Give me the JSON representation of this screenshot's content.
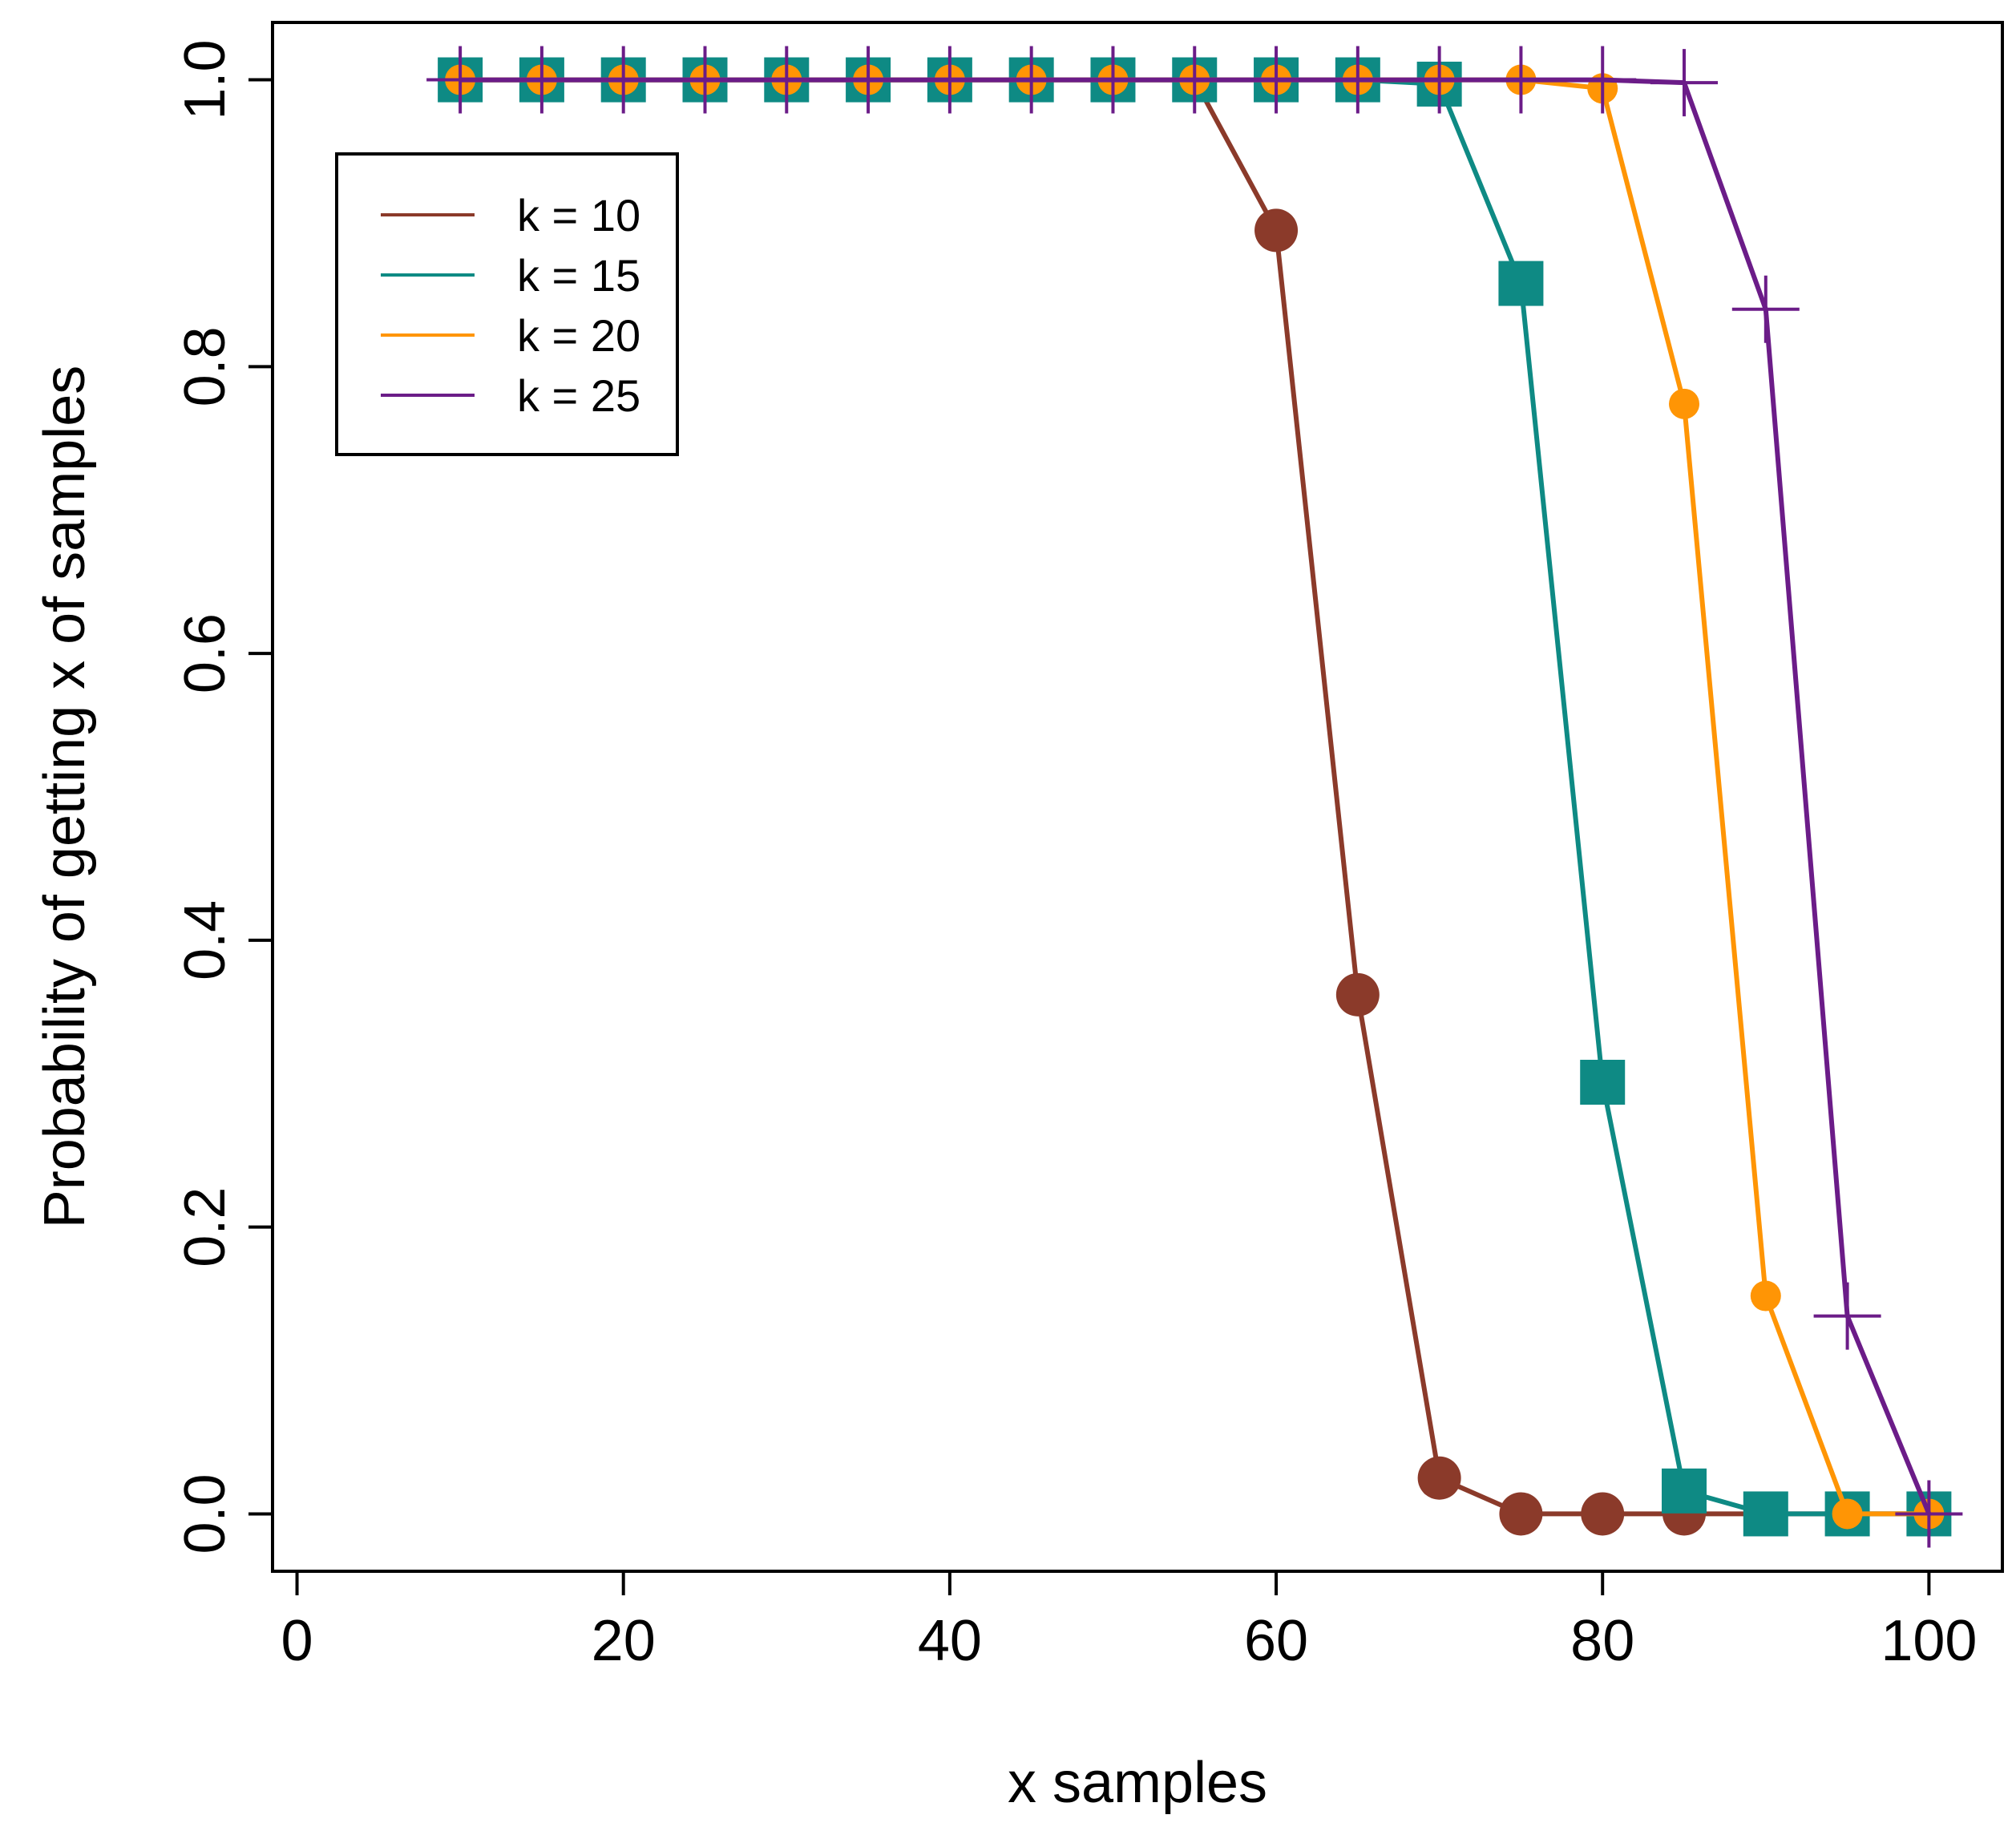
{
  "chart_data": {
    "type": "line",
    "title": "",
    "xlabel": "x samples",
    "ylabel": "Probability of getting x of samples",
    "xlim": [
      -1.5,
      104.5
    ],
    "ylim": [
      -0.04,
      1.04
    ],
    "xticks": [
      0,
      20,
      40,
      60,
      80,
      100
    ],
    "xtick_labels": [
      "0",
      "20",
      "40",
      "60",
      "80",
      "100"
    ],
    "yticks": [
      0.0,
      0.2,
      0.4,
      0.6,
      0.8,
      1.0
    ],
    "ytick_labels": [
      "0.0",
      "0.2",
      "0.4",
      "0.6",
      "0.8",
      "1.0"
    ],
    "grid": false,
    "legend_position": "top-left",
    "x": [
      10,
      15,
      20,
      25,
      30,
      35,
      40,
      45,
      50,
      55,
      60,
      65,
      70,
      75,
      80,
      85,
      90,
      95,
      100
    ],
    "series": [
      {
        "name": "k = 10",
        "color": "#8b3a2a",
        "marker": "circle",
        "values": [
          1,
          1,
          1,
          1,
          1,
          1,
          1,
          1,
          1,
          1,
          0.895,
          0.362,
          0.025,
          0,
          0,
          0,
          0,
          0,
          0
        ]
      },
      {
        "name": "k = 15",
        "color": "#0e8a84",
        "marker": "square",
        "values": [
          1,
          1,
          1,
          1,
          1,
          1,
          1,
          1,
          1,
          1,
          1,
          1,
          0.997,
          0.858,
          0.301,
          0.016,
          0,
          0,
          0
        ]
      },
      {
        "name": "k = 20",
        "color": "#ff9505",
        "marker": "circle-small",
        "values": [
          1,
          1,
          1,
          1,
          1,
          1,
          1,
          1,
          1,
          1,
          1,
          1,
          1,
          1,
          0.994,
          0.774,
          0.152,
          0,
          0
        ]
      },
      {
        "name": "k = 25",
        "color": "#6b1c88",
        "marker": "plus",
        "values": [
          1,
          1,
          1,
          1,
          1,
          1,
          1,
          1,
          1,
          1,
          1,
          1,
          1,
          1,
          1,
          0.998,
          0.84,
          0.138,
          0
        ]
      }
    ]
  }
}
